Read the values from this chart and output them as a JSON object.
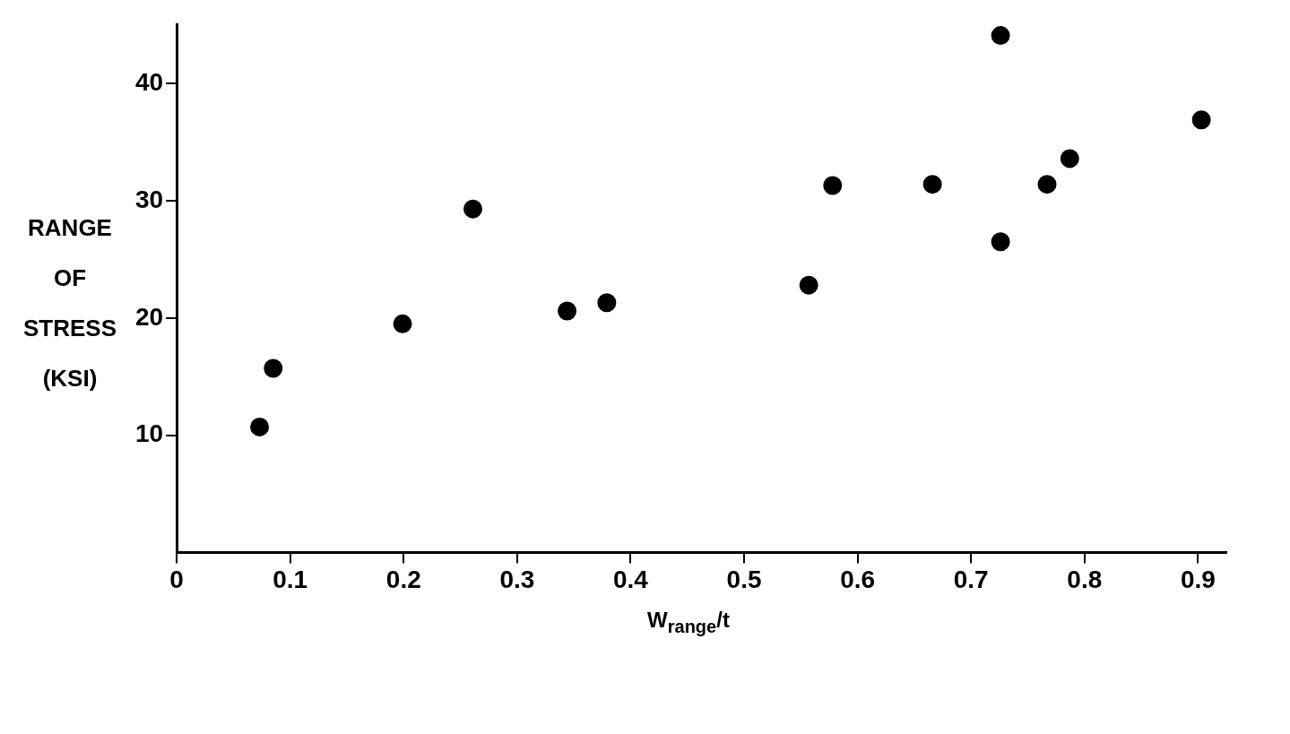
{
  "chart_data": {
    "type": "scatter",
    "xlabel": "W$_{range}$/t",
    "ylabel": "RANGE OF STRESS (KSI)",
    "x": [
      0.073,
      0.085,
      0.199,
      0.261,
      0.344,
      0.379,
      0.557,
      0.578,
      0.666,
      0.726,
      0.726,
      0.767,
      0.787,
      0.903
    ],
    "values": [
      10.7,
      15.7,
      19.5,
      29.3,
      20.6,
      21.3,
      22.8,
      31.3,
      31.4,
      44.1,
      26.5,
      31.4,
      33.6,
      36.9
    ],
    "color": "#000000",
    "marker": "circle",
    "legend": false,
    "grid": false,
    "xlim": [
      0,
      0.925
    ],
    "ylim": [
      0,
      45
    ],
    "xticks": [
      {
        "value": 0,
        "label": "0"
      },
      0.1,
      0.2,
      0.3,
      0.4,
      0.5,
      0.6,
      0.7,
      0.8,
      0.9
    ],
    "yticks": [
      10,
      20,
      30,
      40
    ]
  }
}
